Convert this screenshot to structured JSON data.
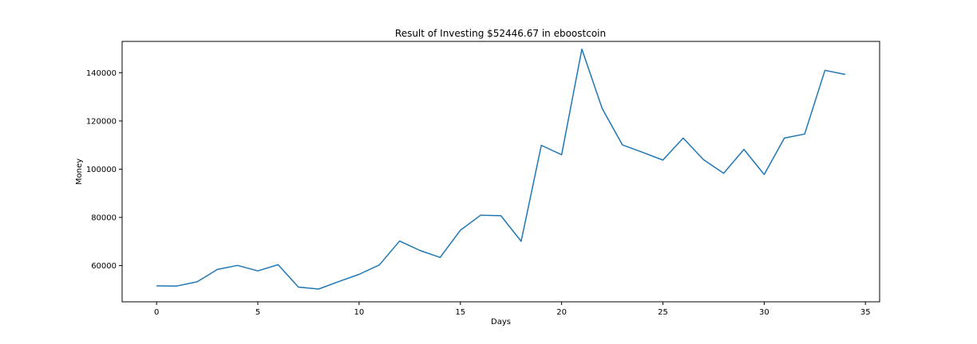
{
  "chart_data": {
    "type": "line",
    "title": "Result of Investing $52446.67 in eboostcoin",
    "xlabel": "Days",
    "ylabel": "Money",
    "xlim": [
      -1.7,
      35.7
    ],
    "ylim": [
      45000,
      153000
    ],
    "xticks": [
      0,
      5,
      10,
      15,
      20,
      25,
      30,
      35
    ],
    "yticks": [
      60000,
      80000,
      100000,
      120000,
      140000
    ],
    "grid": false,
    "series": [
      {
        "color": "#1f77b4",
        "x": [
          0,
          1,
          2,
          3,
          4,
          5,
          6,
          7,
          8,
          9,
          10,
          11,
          12,
          13,
          14,
          15,
          16,
          17,
          18,
          19,
          20,
          21,
          22,
          23,
          24,
          25,
          26,
          27,
          28,
          29,
          30,
          31,
          32,
          33,
          34
        ],
        "values": [
          51600,
          51550,
          53300,
          58400,
          60100,
          57800,
          60400,
          51100,
          50300,
          53400,
          56400,
          60300,
          70200,
          66300,
          63400,
          74700,
          80900,
          80700,
          70100,
          109900,
          106000,
          149800,
          125200,
          110100,
          107000,
          103800,
          112900,
          104000,
          98300,
          108200,
          97800,
          112900,
          114600,
          141000,
          139300
        ]
      }
    ]
  }
}
